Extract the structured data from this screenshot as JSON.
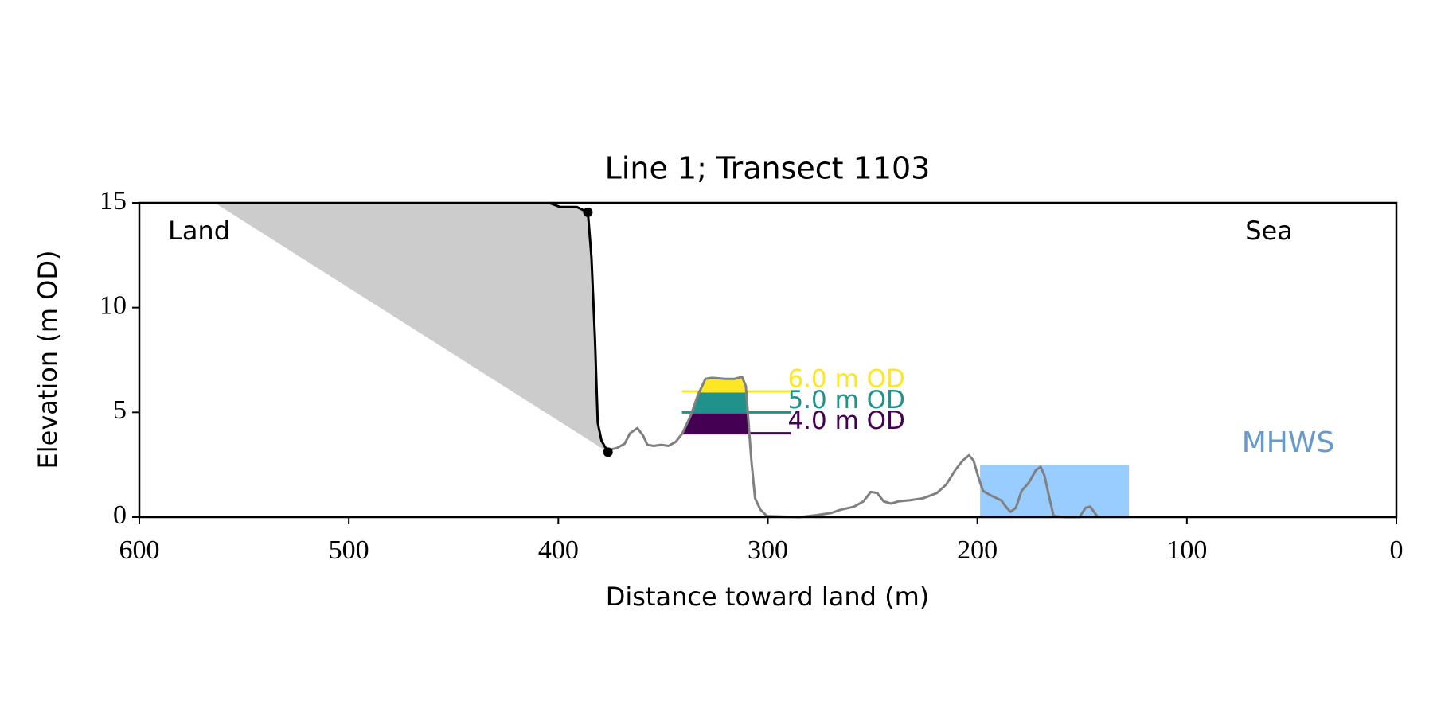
{
  "chart_data": {
    "type": "line",
    "title": "Line 1; Transect 1103",
    "xlabel": "Distance toward land (m)",
    "ylabel": "Elevation (m OD)",
    "xlim": [
      600,
      0
    ],
    "ylim": [
      0,
      15
    ],
    "xticks": [
      600,
      500,
      400,
      300,
      200,
      100,
      0
    ],
    "yticks": [
      0,
      5,
      10,
      15
    ],
    "annotations": [
      "Land",
      "Sea"
    ],
    "profile": {
      "color": "#808080",
      "x": [
        376.3,
        372,
        368.4,
        365.8,
        362.3,
        359.6,
        357.5,
        354.4,
        350.9,
        347.4,
        343.9,
        340.8,
        336.8,
        333.3,
        329.8,
        326.8,
        320.2,
        315.8,
        312.3,
        310.5,
        309.2,
        307.9,
        306.1,
        303.5,
        300.4,
        285,
        276.3,
        269.7,
        265.4,
        258.8,
        254.4,
        250.9,
        247.8,
        244.7,
        241.2,
        237.7,
        232.5,
        225.9,
        219.3,
        214.9,
        210.5,
        207,
        204,
        201.8,
        199.5,
        197.3,
        192.9,
        188.6,
        186.4,
        184.2,
        181.6,
        178.9,
        175.4,
        172,
        169.8,
        168,
        165.8,
        163.6,
        157.9,
        151.3,
        148.3,
        146.1,
        142.5
      ],
      "y": [
        3.2,
        3.3,
        3.5,
        4.0,
        4.25,
        3.9,
        3.45,
        3.4,
        3.45,
        3.4,
        3.6,
        4.0,
        4.85,
        5.85,
        6.6,
        6.65,
        6.6,
        6.6,
        6.7,
        6.25,
        4.5,
        2.75,
        0.9,
        0.35,
        0.05,
        0,
        0.1,
        0.2,
        0.35,
        0.5,
        0.75,
        1.2,
        1.15,
        0.75,
        0.65,
        0.75,
        0.8,
        0.9,
        1.15,
        1.55,
        2.25,
        2.7,
        2.95,
        2.7,
        1.9,
        1.25,
        1.0,
        0.8,
        0.5,
        0.25,
        0.45,
        1.25,
        1.65,
        2.25,
        2.4,
        2.0,
        1.0,
        0.05,
        0,
        0,
        0.45,
        0.5,
        0
      ]
    },
    "cliff": {
      "color": "#000000",
      "x": [
        404.4,
        399.1,
        391.2,
        385.9,
        384.2,
        382.5,
        381.2,
        379.4,
        376.3
      ],
      "y": [
        15,
        14.8,
        14.8,
        14.55,
        12.4,
        8.45,
        4.5,
        3.65,
        3.1
      ]
    },
    "cliff_points": {
      "color": "#000000",
      "x": [
        385.9,
        376.3
      ],
      "y": [
        14.55,
        3.1
      ]
    },
    "cliff_shade": {
      "color": "#cccccc",
      "x": [
        564,
        404.4,
        399.1,
        391.2,
        385.9,
        384.2,
        382.5,
        381.2,
        379.4,
        376.3
      ],
      "y": [
        15,
        15,
        14.8,
        14.8,
        14.55,
        12.4,
        8.45,
        4.5,
        3.65,
        3.1
      ]
    },
    "levels": {
      "xrange": [
        341,
        289
      ],
      "items": [
        {
          "label": "4.0 m OD",
          "value": 4,
          "color": "#440154"
        },
        {
          "label": "5.0 m OD",
          "value": 5,
          "color": "#21918c"
        },
        {
          "label": "6.0 m OD",
          "value": 6,
          "color": "#fde725"
        }
      ]
    },
    "mhws": {
      "label": "MHWS",
      "value": 2.5,
      "xrange": [
        198.7,
        127.6
      ],
      "color": "#99ccff",
      "label_color": "#6699cc"
    }
  }
}
